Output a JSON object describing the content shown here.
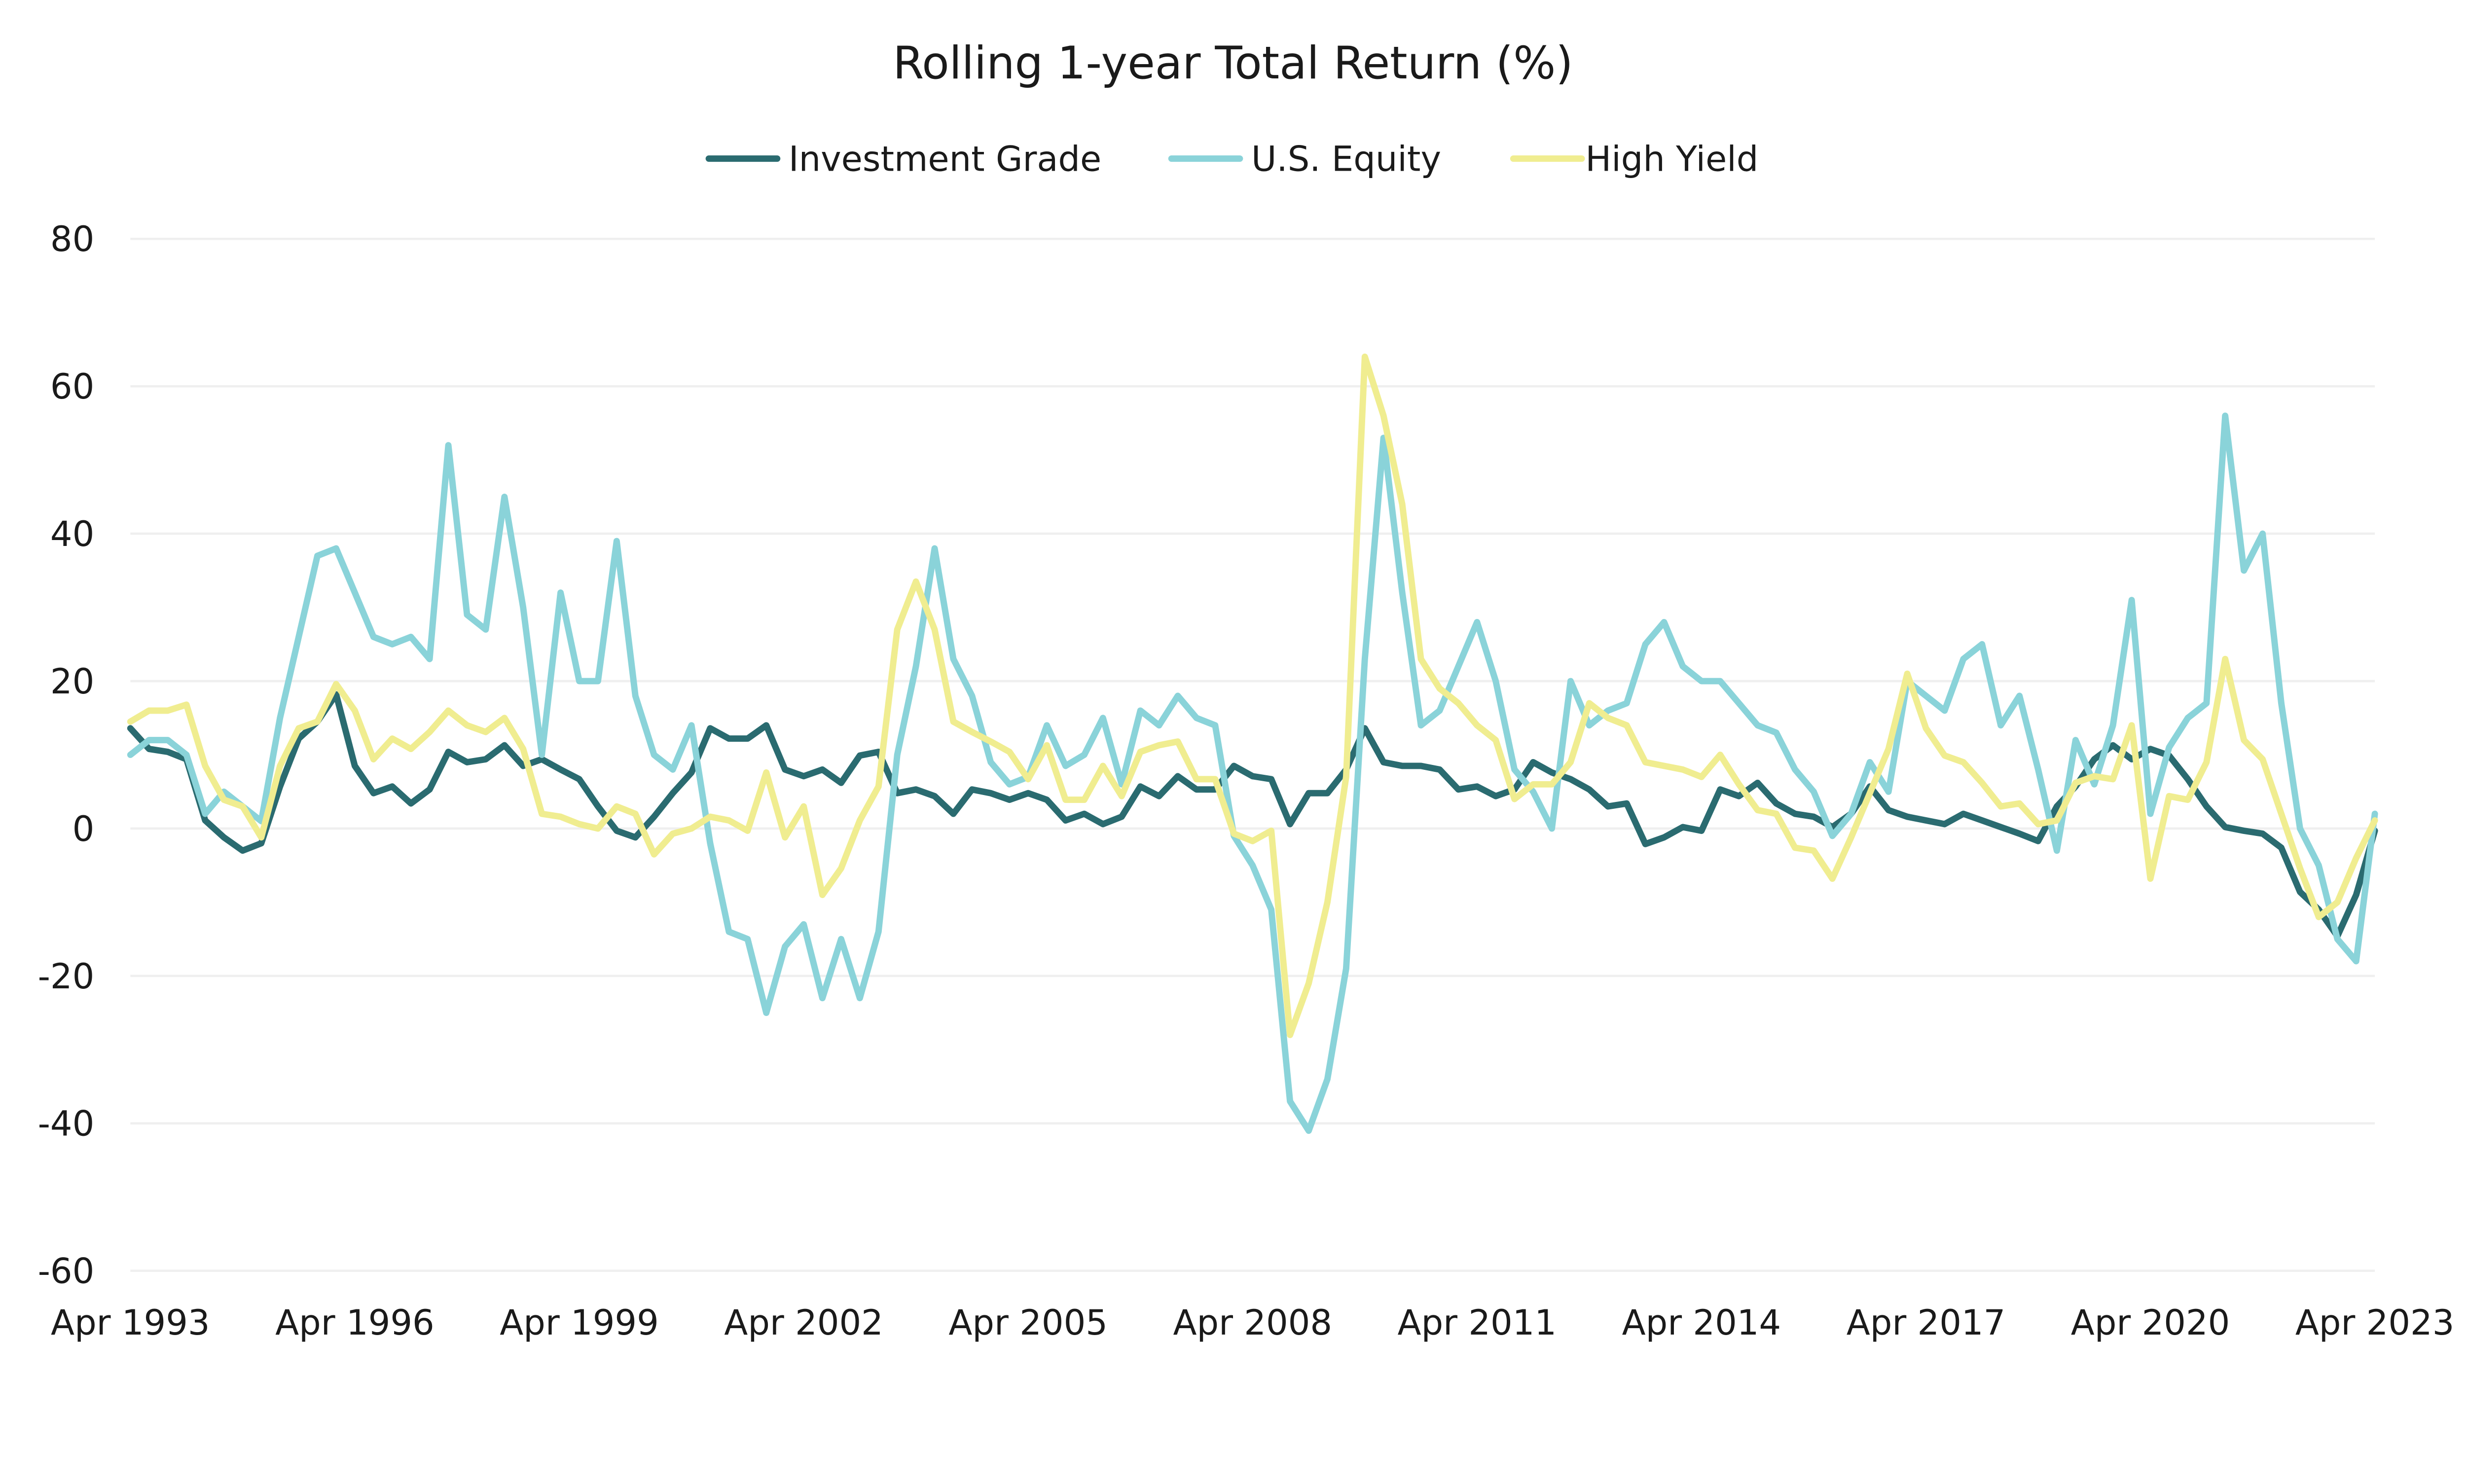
{
  "chart_data": {
    "type": "line",
    "title": "Rolling 1-year Total Return (%)",
    "xlabel": "",
    "ylabel": "",
    "ylim": [
      -60,
      80
    ],
    "yticks": [
      80,
      60,
      40,
      20,
      0,
      -20,
      -40,
      -60
    ],
    "x_start": 1993.25,
    "x_step": 0.25,
    "xlim": [
      1993.25,
      2023.25
    ],
    "xticks": [
      {
        "x": 1993.25,
        "label": "Apr 1993"
      },
      {
        "x": 1996.25,
        "label": "Apr 1996"
      },
      {
        "x": 1999.25,
        "label": "Apr 1999"
      },
      {
        "x": 2002.25,
        "label": "Apr 2002"
      },
      {
        "x": 2005.25,
        "label": "Apr 2005"
      },
      {
        "x": 2008.25,
        "label": "Apr 2008"
      },
      {
        "x": 2011.25,
        "label": "Apr 2011"
      },
      {
        "x": 2014.25,
        "label": "Apr 2014"
      },
      {
        "x": 2017.25,
        "label": "Apr 2017"
      },
      {
        "x": 2020.25,
        "label": "Apr 2020"
      },
      {
        "x": 2023.25,
        "label": "Apr 2023"
      }
    ],
    "grid": true,
    "legend_position": "top-center",
    "series": [
      {
        "name": "Investment Grade",
        "color": "#2a6b70",
        "values": [
          13.6,
          10.8,
          10.4,
          9.4,
          1.1,
          -1.2,
          -3,
          -2,
          5.7,
          12.2,
          14.5,
          18.2,
          8.5,
          4.8,
          5.7,
          3.4,
          5.3,
          10.4,
          9,
          9.4,
          11.3,
          8.5,
          9.4,
          8,
          6.7,
          3,
          -0.3,
          -1.2,
          1.6,
          4.8,
          7.6,
          13.6,
          12.2,
          12.2,
          14,
          8,
          7.1,
          8,
          6.2,
          9.9,
          10.4,
          4.8,
          5.3,
          4.4,
          2,
          5.3,
          4.8,
          3.9,
          4.8,
          3.9,
          1.1,
          2,
          0.6,
          1.6,
          5.7,
          4.4,
          7.1,
          5.3,
          5.3,
          8.5,
          7.1,
          6.7,
          0.6,
          4.8,
          4.8,
          8,
          13.6,
          9,
          8.5,
          8.5,
          8,
          5.3,
          5.7,
          4.4,
          5.3,
          9,
          7.6,
          6.7,
          5.3,
          3,
          3.4,
          -2.1,
          -1.2,
          0.2,
          -0.3,
          5.3,
          4.4,
          6.2,
          3.4,
          2,
          1.6,
          0.2,
          2,
          5.7,
          2.5,
          1.6,
          1.1,
          0.6,
          2,
          1.1,
          0.2,
          -0.7,
          -1.7,
          3,
          5.7,
          9.4,
          11.3,
          9.4,
          10.8,
          9.9,
          6.7,
          3,
          0.2,
          -0.3,
          -0.7,
          -2.6,
          -8.6,
          -11,
          -14.6,
          -9,
          -0.3
        ]
      },
      {
        "name": "U.S. Equity",
        "color": "#8ad3d9",
        "values": [
          10,
          12,
          12,
          10,
          2,
          5,
          3,
          1,
          15,
          26,
          37,
          38,
          32,
          26,
          25,
          26,
          23,
          52,
          29,
          27,
          45,
          30,
          10,
          32,
          20,
          20,
          39,
          18,
          10,
          8,
          14,
          -2,
          -14,
          -15,
          -25,
          -16,
          -13,
          -23,
          -15,
          -23,
          -14,
          10,
          22,
          38,
          23,
          18,
          9,
          6,
          7,
          14,
          8.5,
          10,
          15,
          6,
          16,
          14,
          18,
          15,
          14,
          -1,
          -5,
          -11,
          -37,
          -41,
          -34,
          -19,
          23,
          53,
          32,
          14,
          16,
          22,
          28,
          20,
          8,
          5,
          0,
          20,
          14,
          16,
          17,
          25,
          28,
          22,
          20,
          20,
          17,
          14,
          13,
          8,
          5,
          -1,
          2,
          9,
          5,
          20,
          18,
          16,
          23,
          25,
          14,
          18,
          8,
          -3,
          12,
          6,
          14,
          31,
          2,
          11,
          15,
          17,
          56,
          35,
          40,
          17,
          0,
          -5,
          -15,
          -18,
          2
        ]
      },
      {
        "name": "High Yield",
        "color": "#f0ed90",
        "values": [
          14.5,
          16,
          16,
          16.8,
          8.5,
          3.9,
          3,
          -1.2,
          8.5,
          13.6,
          14.5,
          19.6,
          16,
          9.4,
          12.2,
          10.8,
          13.1,
          16,
          14,
          13.1,
          15,
          10.8,
          2,
          1.6,
          0.6,
          0,
          3,
          2,
          -3.5,
          -0.7,
          0,
          1.6,
          1.1,
          -0.3,
          7.6,
          -1.2,
          3,
          -9,
          -5.4,
          1.1,
          5.7,
          27,
          33.5,
          27,
          14.5,
          13.1,
          11.8,
          10.4,
          6.7,
          11.3,
          3.9,
          3.9,
          8.5,
          4.4,
          10.4,
          11.3,
          11.8,
          6.7,
          6.7,
          -0.7,
          -1.7,
          -0.3,
          -28,
          -21,
          -10,
          7,
          64,
          56,
          44,
          23,
          19,
          17,
          14,
          12,
          4,
          6,
          6,
          9,
          17,
          15,
          14,
          9,
          8.5,
          8,
          7,
          10,
          6,
          2.5,
          2,
          -2.6,
          -3,
          -6.8,
          -1.2,
          4.8,
          10.8,
          21,
          13.6,
          9.9,
          9,
          6.2,
          3,
          3.4,
          0.6,
          1.1,
          6.2,
          7.1,
          6.7,
          14,
          -6.8,
          4.4,
          3.9,
          9,
          23,
          12,
          9.4,
          2,
          -5.4,
          -12,
          -10,
          -4,
          1.1
        ]
      }
    ]
  }
}
